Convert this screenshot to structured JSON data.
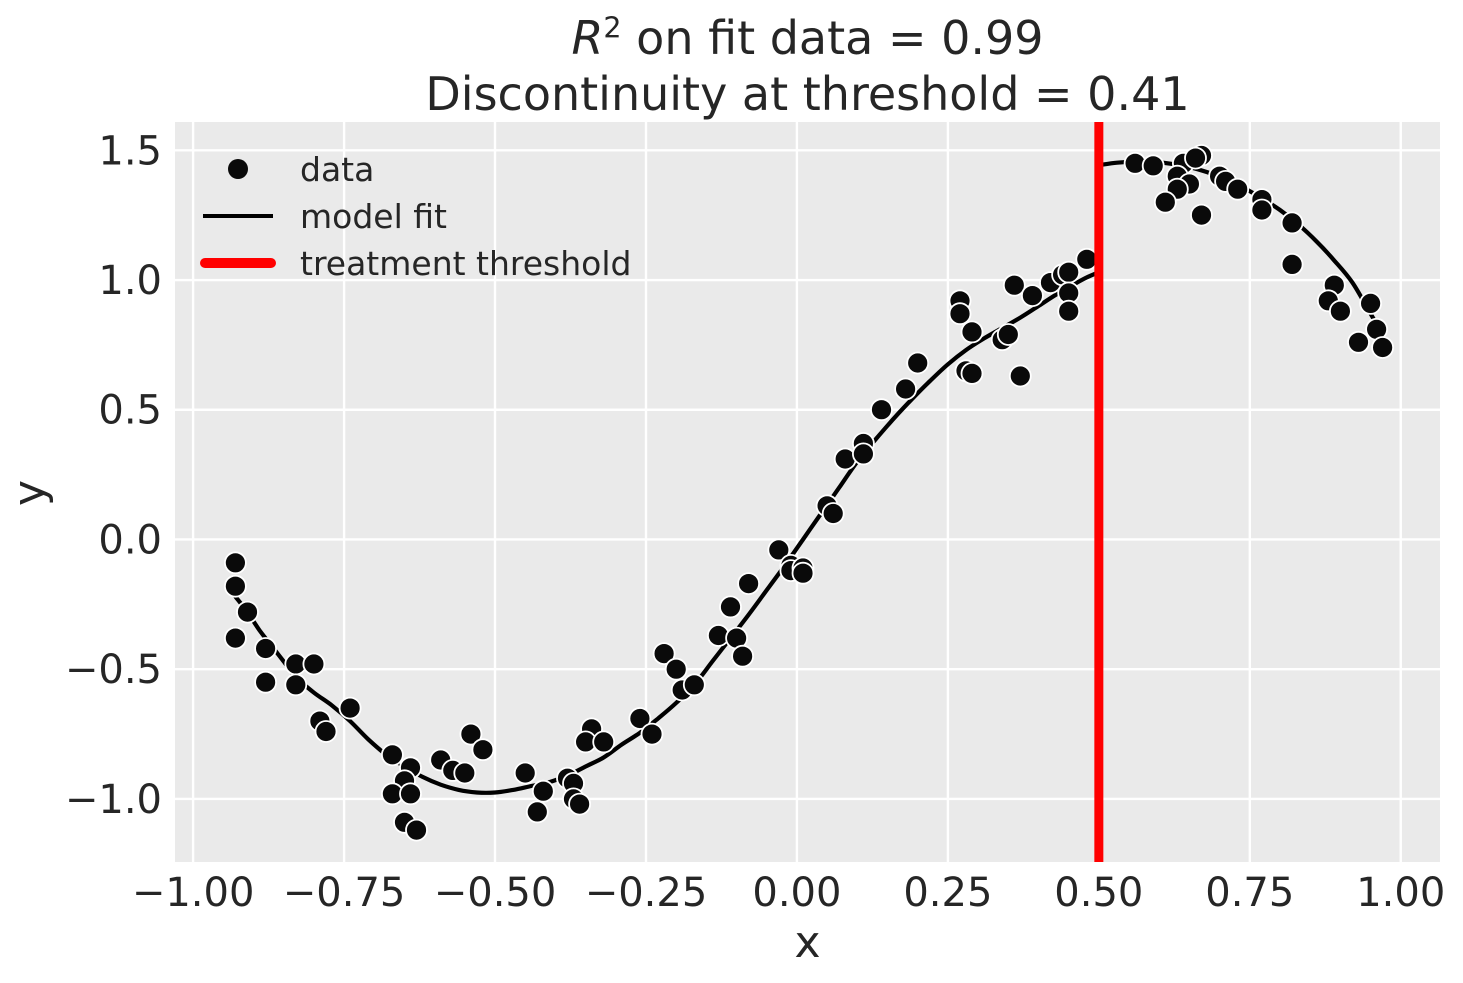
{
  "figure": {
    "background": "#ffffff",
    "plot_bg": "#eaeaea",
    "grid_color": "#ffffff",
    "text_color": "#262626",
    "dot_color": "#0a0a0a",
    "dot_edge_color": "#ffffff",
    "fit_color": "#000000",
    "threshold_color": "#ff0000"
  },
  "title": {
    "r_symbol": "R",
    "r_exponent": "2",
    "line1_rest": " on fit data = 0.99",
    "line2": "Discontinuity at threshold = 0.41"
  },
  "axes": {
    "xlabel": "x",
    "ylabel": "y",
    "xlim": [
      -1.03,
      1.065
    ],
    "ylim": [
      -1.243,
      1.609
    ],
    "grid": true,
    "x_ticks": [
      {
        "v": -1.0,
        "label": "−1.00"
      },
      {
        "v": -0.75,
        "label": "−0.75"
      },
      {
        "v": -0.5,
        "label": "−0.50"
      },
      {
        "v": -0.25,
        "label": "−0.25"
      },
      {
        "v": 0.0,
        "label": "0.00"
      },
      {
        "v": 0.25,
        "label": "0.25"
      },
      {
        "v": 0.5,
        "label": "0.50"
      },
      {
        "v": 0.75,
        "label": "0.75"
      },
      {
        "v": 1.0,
        "label": "1.00"
      }
    ],
    "y_ticks": [
      {
        "v": -1.0,
        "label": "−1.0"
      },
      {
        "v": -0.5,
        "label": "−0.5"
      },
      {
        "v": 0.0,
        "label": "0.0"
      },
      {
        "v": 0.5,
        "label": "0.5"
      },
      {
        "v": 1.0,
        "label": "1.0"
      },
      {
        "v": 1.5,
        "label": "1.5"
      }
    ]
  },
  "legend": {
    "position": "upper left",
    "items": [
      {
        "label": "data",
        "marker": "dot",
        "color": "#0a0a0a"
      },
      {
        "label": "model fit",
        "marker": "line",
        "color": "#000000"
      },
      {
        "label": "treatment threshold",
        "marker": "thick-line",
        "color": "#ff0000"
      }
    ]
  },
  "chart_data": {
    "type": "scatter",
    "title": "R^2 on fit data = 0.99 / Discontinuity at threshold = 0.41",
    "xlabel": "x",
    "ylabel": "y",
    "r_squared": 0.99,
    "discontinuity": 0.41,
    "threshold_x": 0.5,
    "points": [
      [
        -0.93,
        -0.09
      ],
      [
        -0.93,
        -0.18
      ],
      [
        -0.91,
        -0.28
      ],
      [
        -0.93,
        -0.38
      ],
      [
        -0.88,
        -0.42
      ],
      [
        -0.83,
        -0.48
      ],
      [
        -0.8,
        -0.48
      ],
      [
        -0.88,
        -0.55
      ],
      [
        -0.83,
        -0.56
      ],
      [
        -0.74,
        -0.65
      ],
      [
        -0.79,
        -0.7
      ],
      [
        -0.78,
        -0.74
      ],
      [
        -0.67,
        -0.83
      ],
      [
        -0.64,
        -0.88
      ],
      [
        -0.65,
        -0.93
      ],
      [
        -0.67,
        -0.98
      ],
      [
        -0.64,
        -0.98
      ],
      [
        -0.65,
        -1.09
      ],
      [
        -0.63,
        -1.12
      ],
      [
        -0.59,
        -0.85
      ],
      [
        -0.57,
        -0.89
      ],
      [
        -0.55,
        -0.9
      ],
      [
        -0.54,
        -0.75
      ],
      [
        -0.52,
        -0.81
      ],
      [
        -0.45,
        -0.9
      ],
      [
        -0.42,
        -0.97
      ],
      [
        -0.43,
        -1.05
      ],
      [
        -0.38,
        -0.92
      ],
      [
        -0.37,
        -0.94
      ],
      [
        -0.37,
        -1.0
      ],
      [
        -0.36,
        -1.02
      ],
      [
        -0.34,
        -0.73
      ],
      [
        -0.35,
        -0.78
      ],
      [
        -0.32,
        -0.78
      ],
      [
        -0.26,
        -0.69
      ],
      [
        -0.24,
        -0.75
      ],
      [
        -0.22,
        -0.44
      ],
      [
        -0.2,
        -0.5
      ],
      [
        -0.19,
        -0.58
      ],
      [
        -0.17,
        -0.56
      ],
      [
        -0.13,
        -0.37
      ],
      [
        -0.1,
        -0.38
      ],
      [
        -0.09,
        -0.45
      ],
      [
        -0.11,
        -0.26
      ],
      [
        -0.08,
        -0.17
      ],
      [
        -0.03,
        -0.04
      ],
      [
        -0.01,
        -0.1
      ],
      [
        -0.01,
        -0.12
      ],
      [
        0.01,
        -0.11
      ],
      [
        0.01,
        -0.13
      ],
      [
        0.05,
        0.13
      ],
      [
        0.06,
        0.1
      ],
      [
        0.08,
        0.31
      ],
      [
        0.11,
        0.37
      ],
      [
        0.11,
        0.33
      ],
      [
        0.14,
        0.5
      ],
      [
        0.18,
        0.58
      ],
      [
        0.2,
        0.68
      ],
      [
        0.27,
        0.92
      ],
      [
        0.27,
        0.87
      ],
      [
        0.29,
        0.8
      ],
      [
        0.28,
        0.65
      ],
      [
        0.29,
        0.64
      ],
      [
        0.34,
        0.77
      ],
      [
        0.35,
        0.79
      ],
      [
        0.37,
        0.63
      ],
      [
        0.36,
        0.98
      ],
      [
        0.39,
        0.94
      ],
      [
        0.42,
        0.99
      ],
      [
        0.44,
        1.02
      ],
      [
        0.45,
        1.03
      ],
      [
        0.45,
        0.95
      ],
      [
        0.45,
        0.88
      ],
      [
        0.48,
        1.08
      ],
      [
        0.56,
        1.45
      ],
      [
        0.59,
        1.44
      ],
      [
        0.64,
        1.45
      ],
      [
        0.67,
        1.48
      ],
      [
        0.66,
        1.47
      ],
      [
        0.63,
        1.4
      ],
      [
        0.65,
        1.37
      ],
      [
        0.63,
        1.35
      ],
      [
        0.61,
        1.3
      ],
      [
        0.67,
        1.25
      ],
      [
        0.7,
        1.4
      ],
      [
        0.71,
        1.38
      ],
      [
        0.73,
        1.35
      ],
      [
        0.77,
        1.31
      ],
      [
        0.77,
        1.27
      ],
      [
        0.82,
        1.22
      ],
      [
        0.82,
        1.06
      ],
      [
        0.89,
        0.98
      ],
      [
        0.88,
        0.92
      ],
      [
        0.9,
        0.88
      ],
      [
        0.95,
        0.91
      ],
      [
        0.96,
        0.81
      ],
      [
        0.97,
        0.74
      ],
      [
        0.93,
        0.76
      ]
    ],
    "fit_left": [
      [
        -0.93,
        -0.22
      ],
      [
        -0.91,
        -0.28
      ],
      [
        -0.89,
        -0.35
      ],
      [
        -0.87,
        -0.41
      ],
      [
        -0.85,
        -0.47
      ],
      [
        -0.83,
        -0.53
      ],
      [
        -0.8,
        -0.59
      ],
      [
        -0.77,
        -0.64
      ],
      [
        -0.74,
        -0.7
      ],
      [
        -0.71,
        -0.77
      ],
      [
        -0.68,
        -0.83
      ],
      [
        -0.65,
        -0.875
      ],
      [
        -0.62,
        -0.915
      ],
      [
        -0.59,
        -0.945
      ],
      [
        -0.56,
        -0.965
      ],
      [
        -0.53,
        -0.975
      ],
      [
        -0.5,
        -0.975
      ],
      [
        -0.47,
        -0.965
      ],
      [
        -0.44,
        -0.95
      ],
      [
        -0.41,
        -0.935
      ],
      [
        -0.38,
        -0.91
      ],
      [
        -0.35,
        -0.875
      ],
      [
        -0.32,
        -0.84
      ],
      [
        -0.29,
        -0.79
      ],
      [
        -0.26,
        -0.745
      ],
      [
        -0.23,
        -0.69
      ],
      [
        -0.2,
        -0.63
      ],
      [
        -0.17,
        -0.56
      ],
      [
        -0.14,
        -0.47
      ],
      [
        -0.11,
        -0.38
      ],
      [
        -0.08,
        -0.29
      ],
      [
        -0.05,
        -0.195
      ],
      [
        -0.02,
        -0.1
      ],
      [
        0.01,
        0.0
      ],
      [
        0.04,
        0.1
      ],
      [
        0.07,
        0.2
      ],
      [
        0.1,
        0.3
      ],
      [
        0.13,
        0.385
      ],
      [
        0.16,
        0.465
      ],
      [
        0.19,
        0.54
      ],
      [
        0.22,
        0.61
      ],
      [
        0.25,
        0.675
      ],
      [
        0.28,
        0.73
      ],
      [
        0.31,
        0.775
      ],
      [
        0.34,
        0.815
      ],
      [
        0.37,
        0.855
      ],
      [
        0.4,
        0.9
      ],
      [
        0.43,
        0.945
      ],
      [
        0.46,
        0.985
      ],
      [
        0.48,
        1.01
      ],
      [
        0.5,
        1.03
      ]
    ],
    "fit_right": [
      [
        0.5,
        1.443
      ],
      [
        0.53,
        1.452
      ],
      [
        0.56,
        1.456
      ],
      [
        0.59,
        1.455
      ],
      [
        0.62,
        1.448
      ],
      [
        0.65,
        1.435
      ],
      [
        0.68,
        1.415
      ],
      [
        0.71,
        1.39
      ],
      [
        0.74,
        1.355
      ],
      [
        0.77,
        1.315
      ],
      [
        0.8,
        1.27
      ],
      [
        0.83,
        1.215
      ],
      [
        0.86,
        1.15
      ],
      [
        0.89,
        1.075
      ],
      [
        0.92,
        0.99
      ],
      [
        0.95,
        0.87
      ],
      [
        0.97,
        0.79
      ]
    ]
  }
}
